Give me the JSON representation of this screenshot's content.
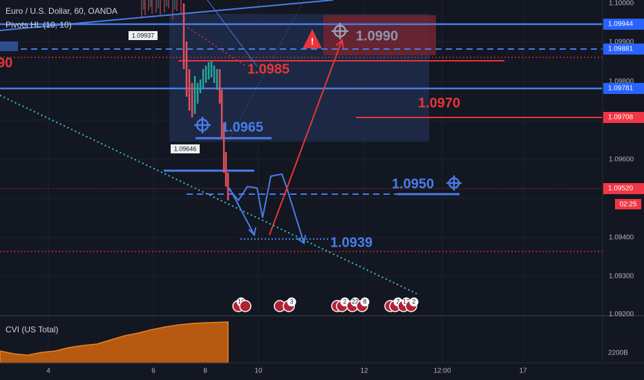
{
  "header": {
    "symbol": "Euro / U.S. Dollar, 60, OANDA",
    "indicator": "Pivots HL (10, 10)"
  },
  "price_axis": {
    "labels": [
      "1.10000",
      "1.09900",
      "1.09800",
      "1.09600",
      "1.09400",
      "1.09300",
      "1.09200"
    ],
    "markers": [
      "1.09944",
      "1.09881",
      "1.09781",
      "1.09708",
      "1.09520"
    ],
    "countdown": "02:25"
  },
  "time_axis": [
    "4",
    "6",
    "8",
    "10",
    "12",
    "12:00",
    "17"
  ],
  "annotations": {
    "target_high": "1.0990",
    "level_1": "1.0985",
    "level_2": "1.0970",
    "level_3": "1.0965",
    "level_4": "1.0950",
    "level_5": "1.0939",
    "pivot_labels": [
      "1.09937",
      "1.09646"
    ],
    "left_edge": "90"
  },
  "indicator_pane": {
    "title": "CVI (US Total)",
    "axis_label": "2200B"
  },
  "event_badges": [
    "10",
    "3",
    "2",
    "22",
    "8",
    "2",
    "12",
    "2"
  ]
}
